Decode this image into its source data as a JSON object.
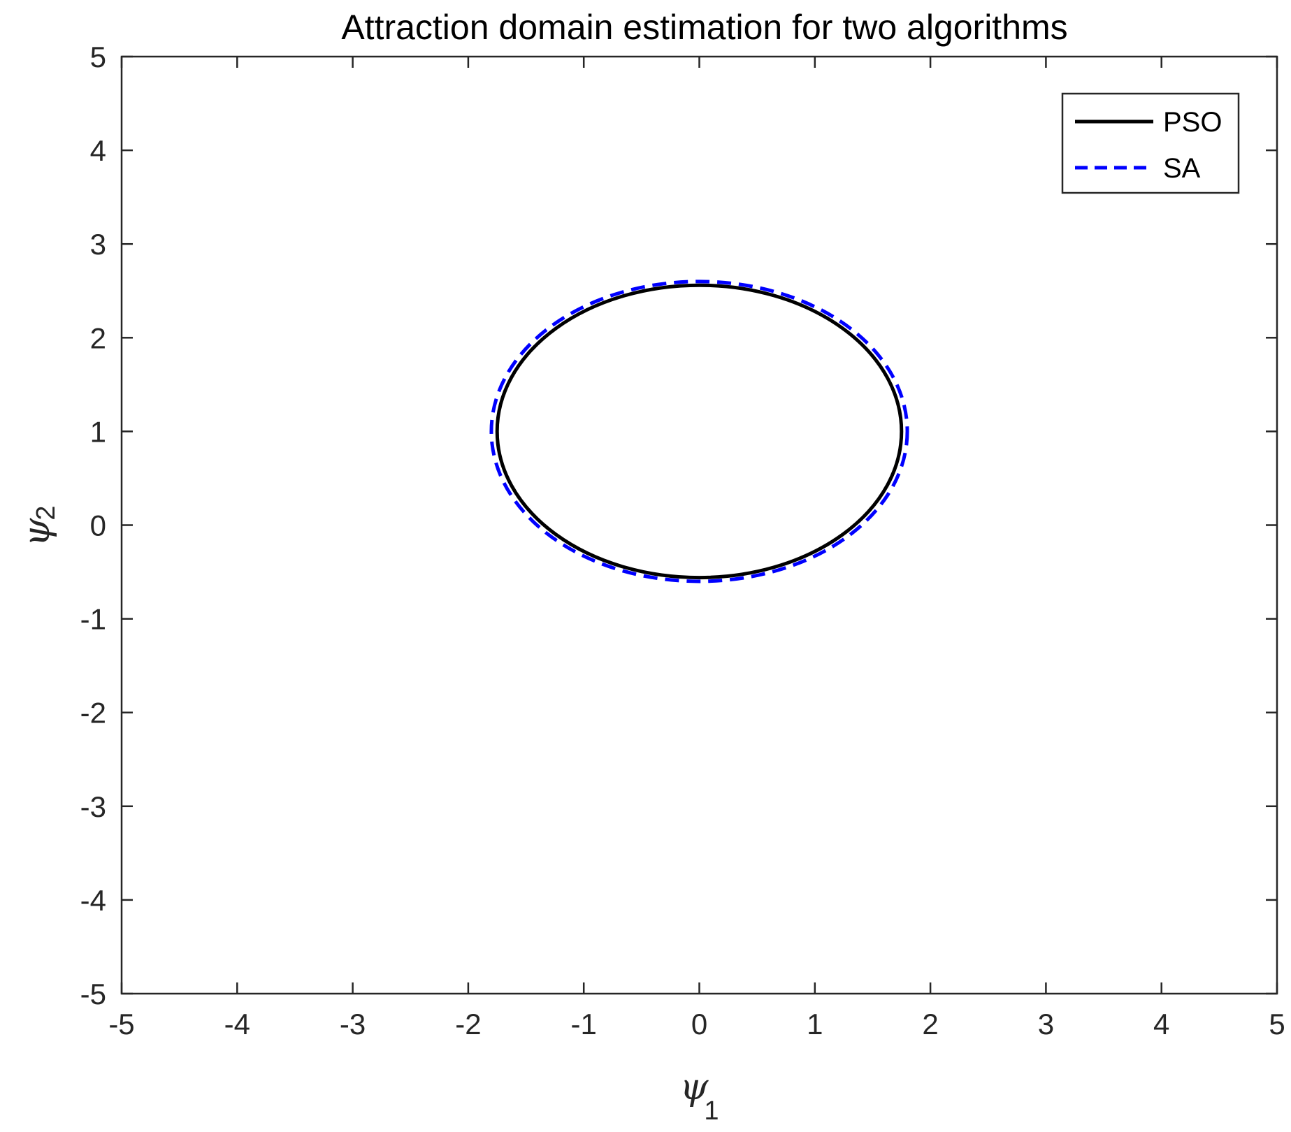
{
  "chart_data": {
    "type": "line",
    "title": "Attraction domain estimation for two algorithms",
    "xlabel": {
      "symbol": "ψ",
      "subscript": "1"
    },
    "ylabel": {
      "symbol": "ψ",
      "subscript": "2"
    },
    "xlim": [
      -5,
      5
    ],
    "ylim": [
      -5,
      5
    ],
    "xticks": [
      -5,
      -4,
      -3,
      -2,
      -1,
      0,
      1,
      2,
      3,
      4,
      5
    ],
    "yticks": [
      -5,
      -4,
      -3,
      -2,
      -1,
      0,
      1,
      2,
      3,
      4,
      5
    ],
    "xtick_labels": [
      "-5",
      "-4",
      "-3",
      "-2",
      "-1",
      "0",
      "1",
      "2",
      "3",
      "4",
      "5"
    ],
    "ytick_labels": [
      "-5",
      "-4",
      "-3",
      "-2",
      "-1",
      "0",
      "1",
      "2",
      "3",
      "4",
      "5"
    ],
    "grid": false,
    "legend_position": "top-right",
    "series": [
      {
        "name": "PSO",
        "shape": "ellipse",
        "center": [
          0.0,
          1.0
        ],
        "semi_axes": [
          1.75,
          1.56
        ],
        "color": "#000000",
        "line_style": "solid"
      },
      {
        "name": "SA",
        "shape": "ellipse",
        "center": [
          0.0,
          1.0
        ],
        "semi_axes": [
          1.8,
          1.6
        ],
        "color": "#0000ff",
        "line_style": "dashed"
      }
    ]
  }
}
